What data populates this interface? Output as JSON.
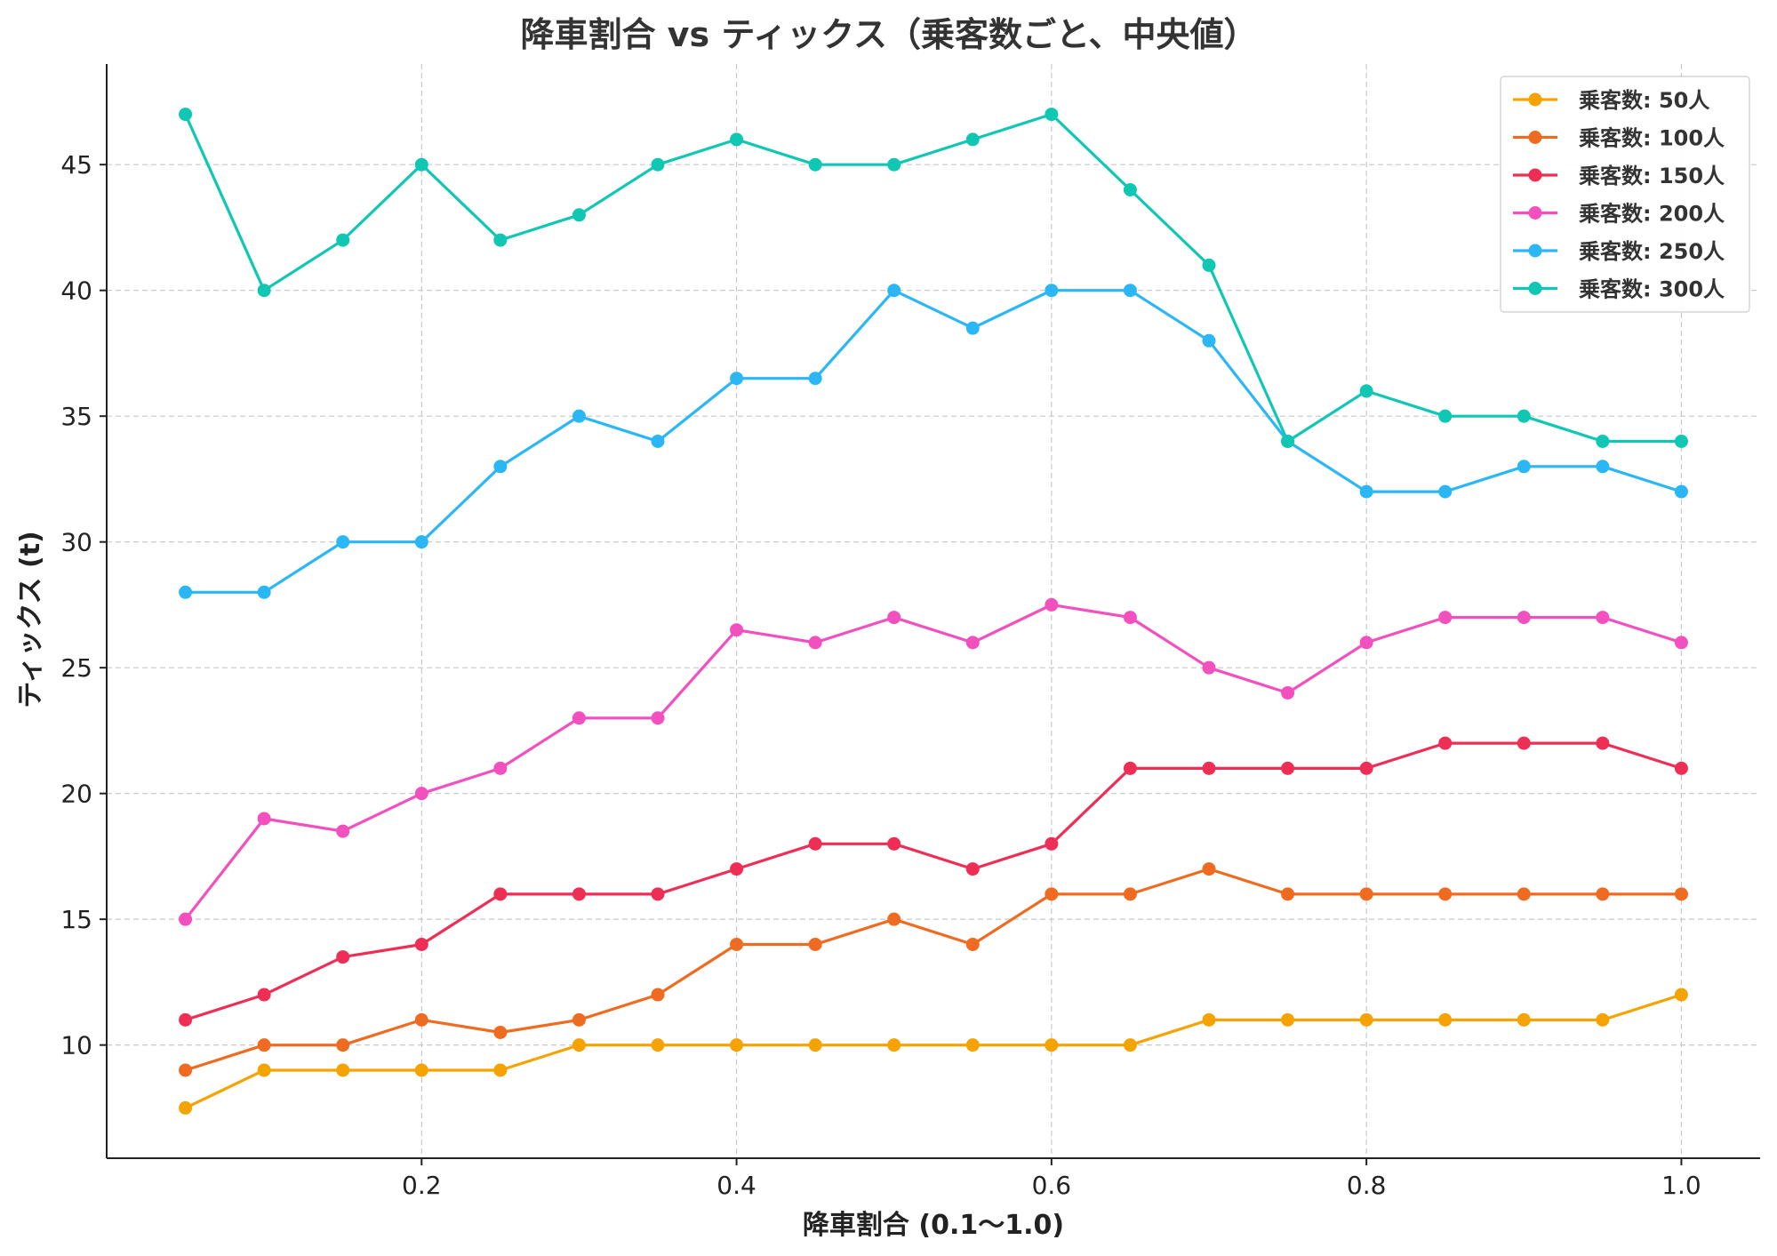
{
  "chart_data": {
    "type": "line",
    "title": "降車割合 vs ティックス（乗客数ごと、中央値）",
    "xlabel": "降車割合 (0.1〜1.0)",
    "ylabel": "ティックス (t)",
    "xlim": [
      0.0,
      1.05
    ],
    "ylim": [
      5.5,
      49
    ],
    "xticks": [
      0.2,
      0.4,
      0.6,
      0.8,
      1.0
    ],
    "xtick_labels": [
      "0.2",
      "0.4",
      "0.6",
      "0.8",
      "1.0"
    ],
    "yticks": [
      10,
      15,
      20,
      25,
      30,
      35,
      40,
      45
    ],
    "ytick_labels": [
      "10",
      "15",
      "20",
      "25",
      "30",
      "35",
      "40",
      "45"
    ],
    "grid": true,
    "legend_position": "top-right",
    "x": [
      0.05,
      0.1,
      0.15,
      0.2,
      0.25,
      0.3,
      0.35,
      0.4,
      0.45,
      0.5,
      0.55,
      0.6,
      0.65,
      0.7,
      0.75,
      0.8,
      0.85,
      0.9,
      0.95,
      1.0
    ],
    "series": [
      {
        "name": "乗客数: 50人",
        "color": "#f5a300",
        "values": [
          7.5,
          9,
          9,
          9,
          9,
          10,
          10,
          10,
          10,
          10,
          10,
          10,
          10,
          11,
          11,
          11,
          11,
          11,
          11,
          12
        ]
      },
      {
        "name": "乗客数: 100人",
        "color": "#f06b22",
        "values": [
          9,
          10,
          10,
          11,
          10.5,
          11,
          12,
          14,
          14,
          15,
          14,
          16,
          16,
          17,
          16,
          16,
          16,
          16,
          16,
          16
        ]
      },
      {
        "name": "乗客数: 150人",
        "color": "#ee2e55",
        "values": [
          11,
          12,
          13.5,
          14,
          16,
          16,
          16,
          17,
          18,
          18,
          17,
          18,
          21,
          21,
          21,
          21,
          22,
          22,
          22,
          21
        ]
      },
      {
        "name": "乗客数: 200人",
        "color": "#f24fbf",
        "values": [
          15,
          19,
          18.5,
          20,
          21,
          23,
          23,
          26.5,
          26,
          27,
          26,
          27.5,
          27,
          25,
          24,
          26,
          27,
          27,
          27,
          26
        ]
      },
      {
        "name": "乗客数: 250人",
        "color": "#2bb7f5",
        "values": [
          28,
          28,
          30,
          30,
          33,
          35,
          34,
          36.5,
          36.5,
          40,
          38.5,
          40,
          40,
          38,
          34,
          32,
          32,
          33,
          33,
          32
        ]
      },
      {
        "name": "乗客数: 300人",
        "color": "#0fc7b3",
        "values": [
          47,
          40,
          42,
          45,
          42,
          43,
          45,
          46,
          45,
          45,
          46,
          47,
          44,
          41,
          34,
          36,
          35,
          35,
          34,
          34
        ]
      }
    ]
  }
}
